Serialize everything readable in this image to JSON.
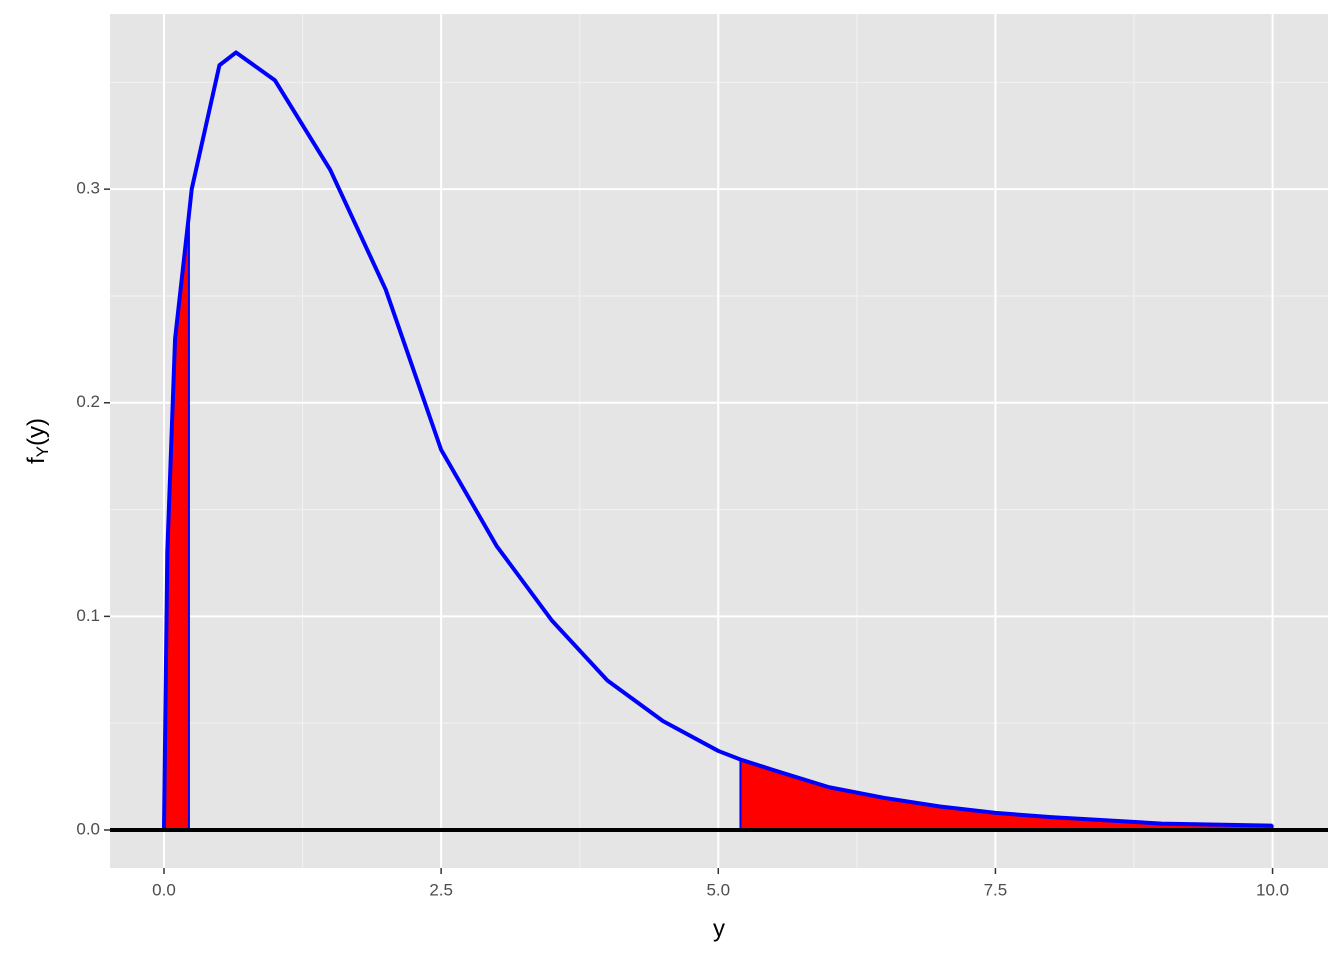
{
  "chart_data": {
    "type": "line",
    "x_label": "y",
    "y_label": [
      "f",
      "Y",
      "(y)"
    ],
    "x": [
      0,
      0.03,
      0.1,
      0.225,
      0.25,
      0.5,
      0.65,
      1,
      1.5,
      2,
      2.5,
      3,
      3.5,
      4,
      4.5,
      5,
      5.2,
      5.5,
      6,
      6.5,
      7,
      7.5,
      8,
      9,
      10
    ],
    "values": [
      0,
      0.13,
      0.23,
      0.288,
      0.3,
      0.358,
      0.364,
      0.351,
      0.309,
      0.253,
      0.178,
      0.133,
      0.098,
      0.07,
      0.051,
      0.037,
      0.033,
      0.028,
      0.02,
      0.015,
      0.011,
      0.008,
      0.006,
      0.003,
      0.002
    ],
    "color": "#0000ff",
    "areas": [
      {
        "x": [
          0,
          0.03,
          0.1,
          0.225
        ],
        "values": [
          0,
          0.13,
          0.23,
          0.288
        ],
        "color": "#ff0000"
      },
      {
        "x": [
          5.2,
          5.5,
          6,
          6.5,
          7,
          7.5,
          8,
          9,
          10
        ],
        "values": [
          0.033,
          0.028,
          0.02,
          0.015,
          0.011,
          0.008,
          0.006,
          0.003,
          0.002
        ],
        "color": "#ff0000"
      }
    ],
    "hline": 0,
    "xlim": [
      -0.487,
      10.5
    ],
    "ylim": [
      -0.0178,
      0.382
    ],
    "xticks": [
      {
        "value": 0,
        "label": "0.0"
      },
      {
        "value": 2.5,
        "label": "2.5"
      },
      {
        "value": 5,
        "label": "5.0"
      },
      {
        "value": 7.5,
        "label": "7.5"
      },
      {
        "value": 10,
        "label": "10.0"
      }
    ],
    "yticks": [
      {
        "value": 0,
        "label": "0.0"
      },
      {
        "value": 0.1,
        "label": "0.1"
      },
      {
        "value": 0.2,
        "label": "0.2"
      },
      {
        "value": 0.3,
        "label": "0.3"
      }
    ],
    "minor_xticks": [
      1.25,
      3.75,
      6.25,
      8.75
    ],
    "minor_yticks": [
      0.05,
      0.15,
      0.25,
      0.35
    ],
    "grid": true
  }
}
